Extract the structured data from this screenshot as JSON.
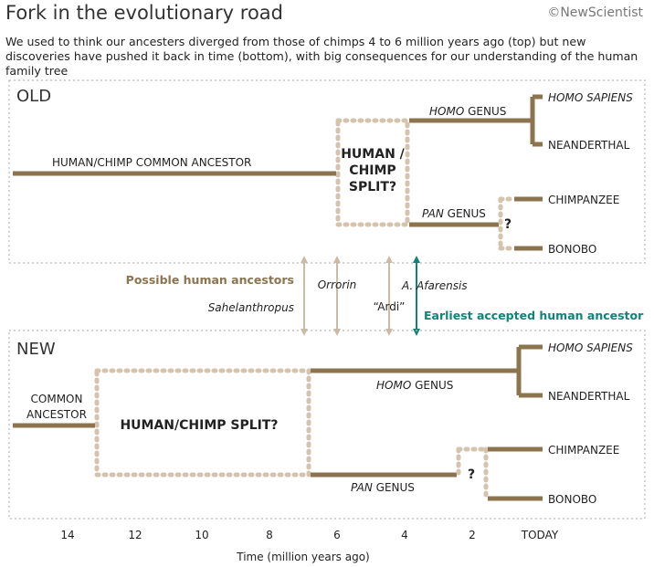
{
  "title": "Fork in the evolutionary road",
  "logo": "©NewScientist",
  "subtitle": "We used to think our ancesters diverged from those of chimps 4 to 6 million years ago (top) but new discoveries have pushed it back in time (bottom), with big consequences for our understanding of the human family tree",
  "colors": {
    "branch": "#8c744f",
    "split_box": "#d4c4ad",
    "arrow": "#cbbba5",
    "teal": "#13837a",
    "panel_border": "#b8b8b8"
  },
  "old_panel": {
    "heading": "OLD",
    "common_ancestor": "HUMAN/CHIMP COMMON ANCESTOR",
    "split_line1": "HUMAN /",
    "split_line2": "CHIMP",
    "split_line3": "SPLIT?",
    "homo_genus_italic": "HOMO",
    "homo_genus_rest": " GENUS",
    "pan_genus_italic": "PAN",
    "pan_genus_rest": " GENUS",
    "homo_sapiens": "HOMO SAPIENS",
    "neanderthal": "NEANDERTHAL",
    "chimpanzee": "CHIMPANZEE",
    "bonobo": "BONOBO",
    "question": "?"
  },
  "fossils": {
    "possible_label": "Possible human ancestors",
    "earliest_label": "Earliest accepted human ancestor",
    "sahelanthropus": "Sahelanthropus",
    "orrorin": "Orrorin",
    "ardi": "“Ardi”",
    "afarensis": "A. Afarensis"
  },
  "new_panel": {
    "heading": "NEW",
    "common_line1": "COMMON",
    "common_line2": "ANCESTOR",
    "split": "HUMAN/CHIMP SPLIT?",
    "homo_genus_italic": "HOMO",
    "homo_genus_rest": " GENUS",
    "pan_genus_italic": "PAN",
    "pan_genus_rest": " GENUS",
    "homo_sapiens": "HOMO SAPIENS",
    "neanderthal": "NEANDERTHAL",
    "chimpanzee": "CHIMPANZEE",
    "bonobo": "BONOBO",
    "question": "?"
  },
  "axis": {
    "ticks": [
      "14",
      "12",
      "10",
      "8",
      "6",
      "4",
      "2",
      "TODAY"
    ],
    "label": "Time (million years ago)"
  }
}
